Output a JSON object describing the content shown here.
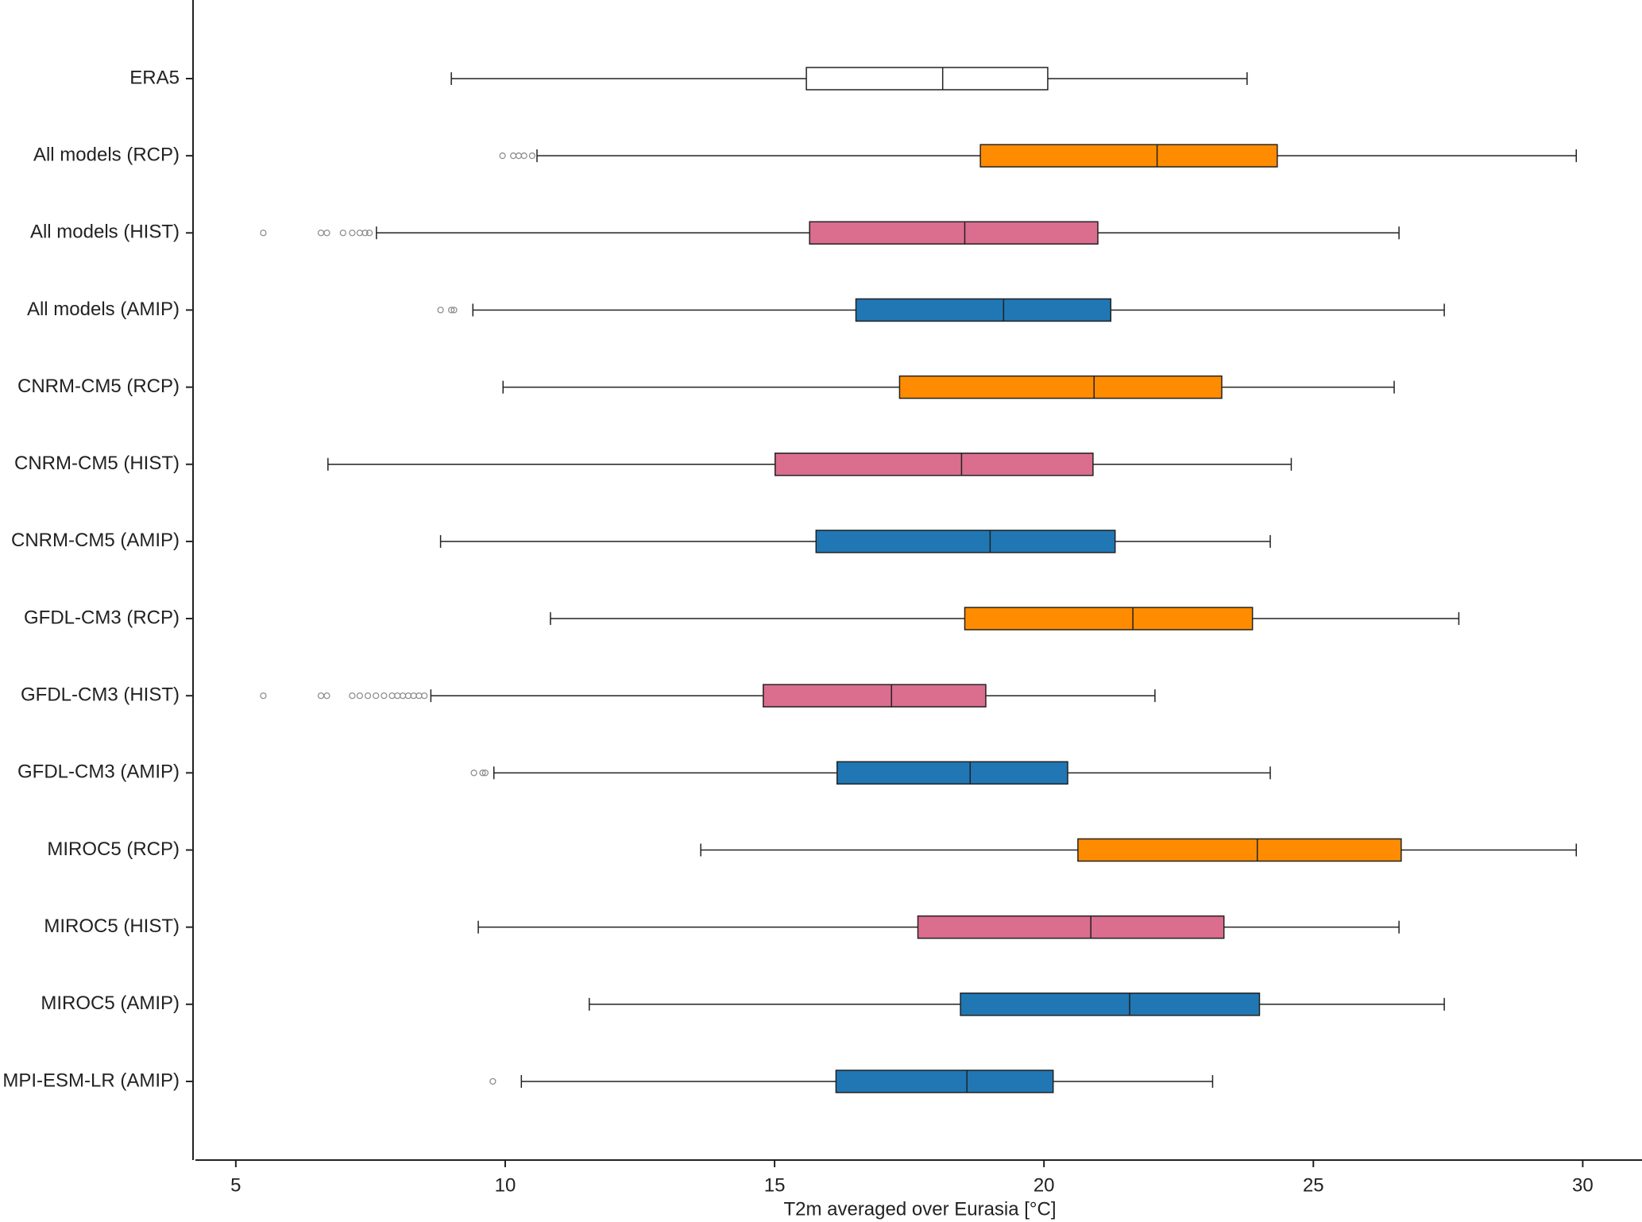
{
  "chart_data": {
    "type": "boxplot",
    "orientation": "horizontal",
    "xlabel": "T2m averaged over Eurasia [°C]",
    "xlim": [
      4.25,
      31.1
    ],
    "xticks": [
      5,
      10,
      15,
      20,
      25,
      30
    ],
    "boxes": [
      {
        "label": "ERA5",
        "color": "#ffffff",
        "whislo": 9.0,
        "q1": 15.59,
        "med": 18.12,
        "q3": 20.07,
        "whishi": 23.77,
        "fliers": []
      },
      {
        "label": "All models (RCP)",
        "color": "#ff8c00",
        "whislo": 10.59,
        "q1": 18.82,
        "med": 22.1,
        "q3": 24.33,
        "whishi": 29.88,
        "fliers": [
          9.95,
          10.15,
          10.25,
          10.35,
          10.5
        ]
      },
      {
        "label": "All models (HIST)",
        "color": "#db6d8f",
        "whislo": 7.61,
        "q1": 15.65,
        "med": 18.53,
        "q3": 21.0,
        "whishi": 26.59,
        "fliers": [
          5.51,
          6.58,
          6.69,
          6.99,
          7.16,
          7.3,
          7.4,
          7.48
        ]
      },
      {
        "label": "All models (AMIP)",
        "color": "#2077b4",
        "whislo": 9.4,
        "q1": 16.51,
        "med": 19.25,
        "q3": 21.24,
        "whishi": 27.43,
        "fliers": [
          8.8,
          9.0,
          9.05
        ]
      },
      {
        "label": "CNRM-CM5 (RCP)",
        "color": "#ff8c00",
        "whislo": 9.96,
        "q1": 17.32,
        "med": 20.93,
        "q3": 23.3,
        "whishi": 26.5,
        "fliers": []
      },
      {
        "label": "CNRM-CM5 (HIST)",
        "color": "#db6d8f",
        "whislo": 6.71,
        "q1": 15.01,
        "med": 18.47,
        "q3": 20.91,
        "whishi": 24.59,
        "fliers": []
      },
      {
        "label": "CNRM-CM5 (AMIP)",
        "color": "#2077b4",
        "whislo": 8.8,
        "q1": 15.77,
        "med": 19.0,
        "q3": 21.32,
        "whishi": 24.2,
        "fliers": []
      },
      {
        "label": "GFDL-CM3 (RCP)",
        "color": "#ff8c00",
        "whislo": 10.84,
        "q1": 18.53,
        "med": 21.65,
        "q3": 23.87,
        "whishi": 27.7,
        "fliers": []
      },
      {
        "label": "GFDL-CM3 (HIST)",
        "color": "#db6d8f",
        "whislo": 8.62,
        "q1": 14.79,
        "med": 17.17,
        "q3": 18.92,
        "whishi": 22.06,
        "fliers": [
          5.51,
          6.58,
          6.69,
          7.16,
          7.3,
          7.45,
          7.6,
          7.75,
          7.9,
          8.0,
          8.1,
          8.2,
          8.3,
          8.4,
          8.5
        ]
      },
      {
        "label": "GFDL-CM3 (AMIP)",
        "color": "#2077b4",
        "whislo": 9.79,
        "q1": 16.16,
        "med": 18.63,
        "q3": 20.44,
        "whishi": 24.2,
        "fliers": [
          9.42,
          9.58,
          9.63
        ]
      },
      {
        "label": "MIROC5 (RCP)",
        "color": "#ff8c00",
        "whislo": 13.63,
        "q1": 20.63,
        "med": 23.96,
        "q3": 26.63,
        "whishi": 29.88,
        "fliers": []
      },
      {
        "label": "MIROC5 (HIST)",
        "color": "#db6d8f",
        "whislo": 9.5,
        "q1": 17.66,
        "med": 20.87,
        "q3": 23.34,
        "whishi": 26.59,
        "fliers": []
      },
      {
        "label": "MIROC5 (AMIP)",
        "color": "#2077b4",
        "whislo": 11.56,
        "q1": 18.45,
        "med": 21.59,
        "q3": 24.0,
        "whishi": 27.43,
        "fliers": []
      },
      {
        "label": "MPI-ESM-LR (AMIP)",
        "color": "#2077b4",
        "whislo": 10.3,
        "q1": 16.14,
        "med": 18.57,
        "q3": 20.17,
        "whishi": 23.13,
        "fliers": [
          9.77
        ]
      }
    ]
  }
}
